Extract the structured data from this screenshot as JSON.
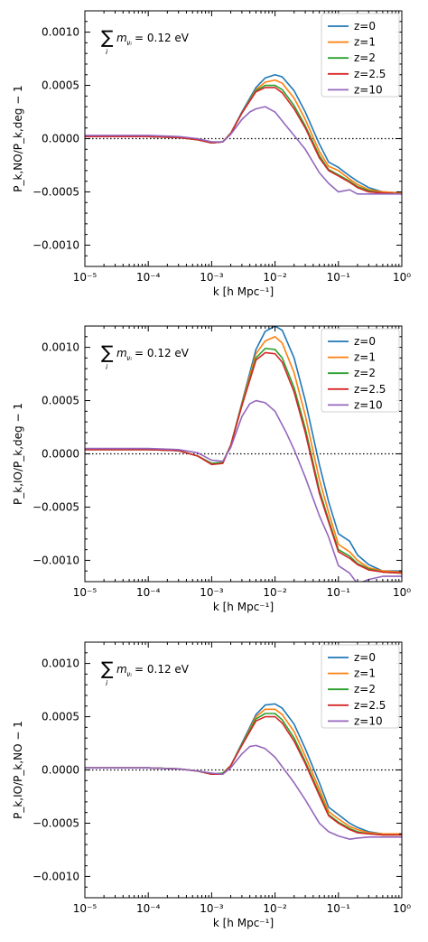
{
  "colors": {
    "z=0": "#1f77b4",
    "z=1": "#ff7f0e",
    "z=2": "#2ca02c",
    "z=2.5": "#d62728",
    "z=10": "#9467bd"
  },
  "legend_labels": [
    "z=0",
    "z=1",
    "z=2",
    "z=2.5",
    "z=10"
  ],
  "annotation": {
    "text": "∑ m_νᵢ = 0.12 eV",
    "prefix": "∑",
    "sub": "i",
    "mid": "m",
    "tail": " = 0.12 eV"
  },
  "x_tick_labels": [
    "10⁻⁵",
    "10⁻⁴",
    "10⁻³",
    "10⁻²",
    "10⁻¹",
    "10⁰"
  ],
  "chart_data": [
    {
      "type": "line",
      "title": "",
      "xlabel": "k [h Mpc⁻¹]",
      "ylabel": "P_k,NO/P_k,deg − 1",
      "xscale": "log",
      "xlim": [
        1e-05,
        1
      ],
      "ylim": [
        -0.0012,
        0.0012
      ],
      "yticks": [
        -0.001,
        -0.0005,
        0.0,
        0.0005,
        0.001
      ],
      "ytick_labels": [
        "−0.0010",
        "−0.0005",
        "0.0000",
        "0.0005",
        "0.0010"
      ],
      "zero_line": "dotted",
      "legend_position": "upper-right",
      "series": [
        {
          "name": "z=0",
          "x": [
            1e-05,
            0.0001,
            0.0003,
            0.0006,
            0.001,
            0.0015,
            0.002,
            0.003,
            0.005,
            0.007,
            0.01,
            0.013,
            0.02,
            0.03,
            0.05,
            0.07,
            0.1,
            0.15,
            0.2,
            0.3,
            0.5,
            1
          ],
          "y": [
            2e-05,
            2e-05,
            1e-05,
            -1e-05,
            -4e-05,
            -3e-05,
            5e-05,
            0.00025,
            0.00048,
            0.00057,
            0.0006,
            0.00058,
            0.00045,
            0.00025,
            -5e-05,
            -0.00022,
            -0.00027,
            -0.00035,
            -0.0004,
            -0.00046,
            -0.0005,
            -0.00051
          ]
        },
        {
          "name": "z=1",
          "x": [
            1e-05,
            0.0001,
            0.0003,
            0.0006,
            0.001,
            0.0015,
            0.002,
            0.003,
            0.005,
            0.007,
            0.01,
            0.013,
            0.02,
            0.03,
            0.05,
            0.07,
            0.1,
            0.15,
            0.2,
            0.3,
            0.5,
            1
          ],
          "y": [
            2e-05,
            2e-05,
            1e-05,
            -1e-05,
            -4e-05,
            -3e-05,
            5e-05,
            0.00024,
            0.00046,
            0.00053,
            0.00055,
            0.00052,
            0.00038,
            0.00018,
            -0.00012,
            -0.00026,
            -0.0003,
            -0.00038,
            -0.00043,
            -0.00048,
            -0.0005,
            -0.00051
          ]
        },
        {
          "name": "z=2",
          "x": [
            1e-05,
            0.0001,
            0.0003,
            0.0006,
            0.001,
            0.0015,
            0.002,
            0.003,
            0.005,
            0.007,
            0.01,
            0.013,
            0.02,
            0.03,
            0.05,
            0.07,
            0.1,
            0.15,
            0.2,
            0.3,
            0.5,
            1
          ],
          "y": [
            2e-05,
            2e-05,
            1e-05,
            -1e-05,
            -4e-05,
            -3e-05,
            5e-05,
            0.00024,
            0.00045,
            0.0005,
            0.0005,
            0.00046,
            0.00031,
            0.00012,
            -0.00016,
            -0.00029,
            -0.00034,
            -0.0004,
            -0.00045,
            -0.00049,
            -0.00051,
            -0.00052
          ]
        },
        {
          "name": "z=2.5",
          "x": [
            1e-05,
            0.0001,
            0.0003,
            0.0006,
            0.001,
            0.0015,
            0.002,
            0.003,
            0.005,
            0.007,
            0.01,
            0.013,
            0.02,
            0.03,
            0.05,
            0.07,
            0.1,
            0.15,
            0.2,
            0.3,
            0.5,
            1
          ],
          "y": [
            2e-05,
            2e-05,
            1e-05,
            -1e-05,
            -4e-05,
            -3e-05,
            5e-05,
            0.00024,
            0.00044,
            0.00048,
            0.00048,
            0.00043,
            0.00028,
            0.0001,
            -0.00018,
            -0.0003,
            -0.00035,
            -0.00041,
            -0.00046,
            -0.0005,
            -0.00051,
            -0.00052
          ]
        },
        {
          "name": "z=10",
          "x": [
            1e-05,
            0.0001,
            0.0003,
            0.0006,
            0.001,
            0.0015,
            0.002,
            0.003,
            0.004,
            0.005,
            0.007,
            0.01,
            0.015,
            0.02,
            0.03,
            0.05,
            0.07,
            0.1,
            0.15,
            0.2,
            0.3,
            0.5,
            1
          ],
          "y": [
            3e-05,
            3e-05,
            2e-05,
            0.0,
            -3e-05,
            -3e-05,
            4e-05,
            0.00018,
            0.00025,
            0.00028,
            0.0003,
            0.00025,
            0.00012,
            3e-05,
            -0.0001,
            -0.00032,
            -0.00042,
            -0.0005,
            -0.00048,
            -0.00052,
            -0.00052,
            -0.00052,
            -0.00052
          ]
        }
      ]
    },
    {
      "type": "line",
      "title": "",
      "xlabel": "k [h Mpc⁻¹]",
      "ylabel": "P_k,IO/P_k,deg − 1",
      "xscale": "log",
      "xlim": [
        1e-05,
        1
      ],
      "ylim": [
        -0.0012,
        0.0012
      ],
      "yticks": [
        -0.001,
        -0.0005,
        0.0,
        0.0005,
        0.001
      ],
      "ytick_labels": [
        "−0.0010",
        "−0.0005",
        "0.0000",
        "0.0005",
        "0.0010"
      ],
      "zero_line": "dotted",
      "legend_position": "upper-right",
      "series": [
        {
          "name": "z=0",
          "x": [
            1e-05,
            0.0001,
            0.0003,
            0.0006,
            0.001,
            0.0015,
            0.002,
            0.003,
            0.005,
            0.007,
            0.01,
            0.013,
            0.02,
            0.03,
            0.05,
            0.07,
            0.1,
            0.15,
            0.2,
            0.3,
            0.5,
            1
          ],
          "y": [
            4e-05,
            4e-05,
            3e-05,
            -2e-05,
            -9e-05,
            -8e-05,
            8e-05,
            0.00048,
            0.00098,
            0.00115,
            0.0012,
            0.00116,
            0.0009,
            0.0005,
            -0.0001,
            -0.00045,
            -0.00075,
            -0.00082,
            -0.00095,
            -0.00104,
            -0.0011,
            -0.0011
          ]
        },
        {
          "name": "z=1",
          "x": [
            1e-05,
            0.0001,
            0.0003,
            0.0006,
            0.001,
            0.0015,
            0.002,
            0.003,
            0.005,
            0.007,
            0.01,
            0.013,
            0.02,
            0.03,
            0.05,
            0.07,
            0.1,
            0.15,
            0.2,
            0.3,
            0.5,
            1
          ],
          "y": [
            4e-05,
            4e-05,
            3e-05,
            -2e-05,
            -9e-05,
            -8e-05,
            8e-05,
            0.00047,
            0.00094,
            0.00106,
            0.0011,
            0.00104,
            0.00076,
            0.00036,
            -0.00024,
            -0.00055,
            -0.00085,
            -0.00092,
            -0.001,
            -0.00107,
            -0.0011,
            -0.00111
          ]
        },
        {
          "name": "z=2",
          "x": [
            1e-05,
            0.0001,
            0.0003,
            0.0006,
            0.001,
            0.0015,
            0.002,
            0.003,
            0.005,
            0.007,
            0.01,
            0.013,
            0.02,
            0.03,
            0.05,
            0.07,
            0.1,
            0.15,
            0.2,
            0.3,
            0.5,
            1
          ],
          "y": [
            4e-05,
            4e-05,
            3e-05,
            -2e-05,
            -9e-05,
            -8e-05,
            8e-05,
            0.00046,
            0.0009,
            0.00099,
            0.00098,
            0.0009,
            0.00062,
            0.00024,
            -0.00034,
            -0.00062,
            -0.0009,
            -0.00096,
            -0.00103,
            -0.00108,
            -0.00111,
            -0.00112
          ]
        },
        {
          "name": "z=2.5",
          "x": [
            1e-05,
            0.0001,
            0.0003,
            0.0006,
            0.001,
            0.0015,
            0.002,
            0.003,
            0.005,
            0.007,
            0.01,
            0.013,
            0.02,
            0.03,
            0.05,
            0.07,
            0.1,
            0.15,
            0.2,
            0.3,
            0.5,
            1
          ],
          "y": [
            4e-05,
            4e-05,
            3e-05,
            -2e-05,
            -0.0001,
            -9e-05,
            8e-05,
            0.00045,
            0.00088,
            0.00095,
            0.00094,
            0.00086,
            0.00058,
            0.0002,
            -0.00037,
            -0.00064,
            -0.00092,
            -0.00098,
            -0.00104,
            -0.00109,
            -0.00111,
            -0.00112
          ]
        },
        {
          "name": "z=10",
          "x": [
            1e-05,
            0.0001,
            0.0003,
            0.0006,
            0.001,
            0.0015,
            0.002,
            0.003,
            0.004,
            0.005,
            0.007,
            0.01,
            0.015,
            0.02,
            0.03,
            0.05,
            0.07,
            0.1,
            0.15,
            0.2,
            0.3,
            0.5,
            1
          ],
          "y": [
            5e-05,
            5e-05,
            4e-05,
            1e-05,
            -6e-05,
            -7e-05,
            6e-05,
            0.00035,
            0.00047,
            0.0005,
            0.00048,
            0.0004,
            0.0002,
            4e-05,
            -0.00022,
            -0.00058,
            -0.00078,
            -0.00105,
            -0.00112,
            -0.00122,
            -0.00118,
            -0.00115,
            -0.00115
          ]
        }
      ]
    },
    {
      "type": "line",
      "title": "",
      "xlabel": "k [h Mpc⁻¹]",
      "ylabel": "P_k,IO/P_k,NO − 1",
      "xscale": "log",
      "xlim": [
        1e-05,
        1
      ],
      "ylim": [
        -0.0012,
        0.0012
      ],
      "yticks": [
        -0.001,
        -0.0005,
        0.0,
        0.0005,
        0.001
      ],
      "ytick_labels": [
        "−0.0010",
        "−0.0005",
        "0.0000",
        "0.0005",
        "0.0010"
      ],
      "zero_line": "dotted",
      "legend_position": "upper-right",
      "series": [
        {
          "name": "z=0",
          "x": [
            1e-05,
            0.0001,
            0.0003,
            0.0006,
            0.001,
            0.0015,
            0.002,
            0.003,
            0.005,
            0.007,
            0.01,
            0.013,
            0.02,
            0.03,
            0.05,
            0.07,
            0.1,
            0.15,
            0.2,
            0.3,
            0.5,
            1
          ],
          "y": [
            2e-05,
            2e-05,
            1e-05,
            -1e-05,
            -4e-05,
            -3e-05,
            4e-05,
            0.00025,
            0.00052,
            0.00061,
            0.00062,
            0.00058,
            0.00043,
            0.0002,
            -0.00012,
            -0.00035,
            -0.00042,
            -0.0005,
            -0.00054,
            -0.00058,
            -0.0006,
            -0.0006
          ]
        },
        {
          "name": "z=1",
          "x": [
            1e-05,
            0.0001,
            0.0003,
            0.0006,
            0.001,
            0.0015,
            0.002,
            0.003,
            0.005,
            0.007,
            0.01,
            0.013,
            0.02,
            0.03,
            0.05,
            0.07,
            0.1,
            0.15,
            0.2,
            0.3,
            0.5,
            1
          ],
          "y": [
            2e-05,
            2e-05,
            1e-05,
            -1e-05,
            -4e-05,
            -3e-05,
            4e-05,
            0.00024,
            0.0005,
            0.00057,
            0.00057,
            0.00052,
            0.00036,
            0.00013,
            -0.00018,
            -0.00039,
            -0.00046,
            -0.00053,
            -0.00056,
            -0.00059,
            -0.0006,
            -0.0006
          ]
        },
        {
          "name": "z=2",
          "x": [
            1e-05,
            0.0001,
            0.0003,
            0.0006,
            0.001,
            0.0015,
            0.002,
            0.003,
            0.005,
            0.007,
            0.01,
            0.013,
            0.02,
            0.03,
            0.05,
            0.07,
            0.1,
            0.15,
            0.2,
            0.3,
            0.5,
            1
          ],
          "y": [
            2e-05,
            2e-05,
            1e-05,
            -1e-05,
            -4e-05,
            -3e-05,
            4e-05,
            0.00024,
            0.00048,
            0.00053,
            0.00053,
            0.00047,
            0.0003,
            8e-05,
            -0.00022,
            -0.00042,
            -0.00049,
            -0.00055,
            -0.00058,
            -0.0006,
            -0.00061,
            -0.00061
          ]
        },
        {
          "name": "z=2.5",
          "x": [
            1e-05,
            0.0001,
            0.0003,
            0.0006,
            0.001,
            0.0015,
            0.002,
            0.003,
            0.005,
            0.007,
            0.01,
            0.013,
            0.02,
            0.03,
            0.05,
            0.07,
            0.1,
            0.15,
            0.2,
            0.3,
            0.5,
            1
          ],
          "y": [
            2e-05,
            2e-05,
            1e-05,
            -1e-05,
            -4e-05,
            -4e-05,
            4e-05,
            0.00023,
            0.00046,
            0.0005,
            0.0005,
            0.00044,
            0.00027,
            6e-05,
            -0.00024,
            -0.00043,
            -0.0005,
            -0.00056,
            -0.00059,
            -0.0006,
            -0.00061,
            -0.00061
          ]
        },
        {
          "name": "z=10",
          "x": [
            1e-05,
            0.0001,
            0.0003,
            0.0006,
            0.001,
            0.0015,
            0.002,
            0.003,
            0.004,
            0.005,
            0.007,
            0.01,
            0.015,
            0.02,
            0.03,
            0.05,
            0.07,
            0.1,
            0.15,
            0.2,
            0.3,
            0.5,
            1
          ],
          "y": [
            2e-05,
            2e-05,
            1e-05,
            -1e-05,
            -3e-05,
            -4e-05,
            2e-05,
            0.00015,
            0.00022,
            0.00023,
            0.0002,
            0.00012,
            -2e-05,
            -0.00012,
            -0.00028,
            -0.0005,
            -0.00058,
            -0.00062,
            -0.00065,
            -0.00064,
            -0.00063,
            -0.00063,
            -0.00063
          ]
        }
      ]
    }
  ]
}
